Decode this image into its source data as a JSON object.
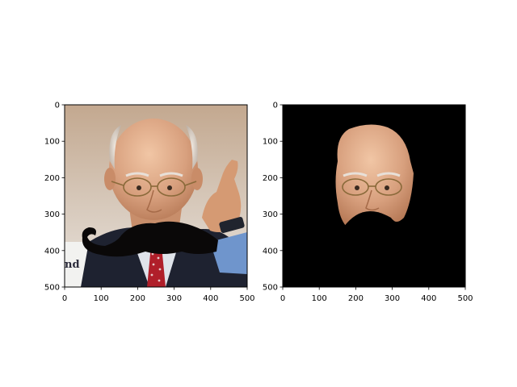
{
  "figure": {
    "background": "#ffffff"
  },
  "chart_data": [
    {
      "type": "image",
      "content": "photo of an elderly man with glasses pointing his finger, with a black cartoon mustache overlaid below his nose",
      "xlim": [
        0,
        500
      ],
      "ylim": [
        500,
        0
      ],
      "xticks": [
        0,
        100,
        200,
        300,
        400,
        500
      ],
      "yticks": [
        0,
        100,
        200,
        300,
        400,
        500
      ],
      "xlabel": "",
      "ylabel": "",
      "title": "",
      "grid": false
    },
    {
      "type": "image",
      "content": "segmented face of the same man on a black background, mustache region blacked out",
      "xlim": [
        0,
        500
      ],
      "ylim": [
        500,
        0
      ],
      "xticks": [
        0,
        100,
        200,
        300,
        400,
        500
      ],
      "yticks": [
        0,
        100,
        200,
        300,
        400,
        500
      ],
      "xlabel": "",
      "ylabel": "",
      "title": "",
      "grid": false
    }
  ],
  "colors": {
    "axis": "#000000",
    "mask_background": "#000000",
    "photo_background_top": "#c3a88f",
    "photo_background_bottom": "#e8e2dc",
    "skin": "#d8a07e",
    "mustache": "#0a0808",
    "suit": "#1e2230",
    "shirt": "#6f95cc",
    "tie": "#b01f2a",
    "glasses": "#8a6a3a"
  }
}
